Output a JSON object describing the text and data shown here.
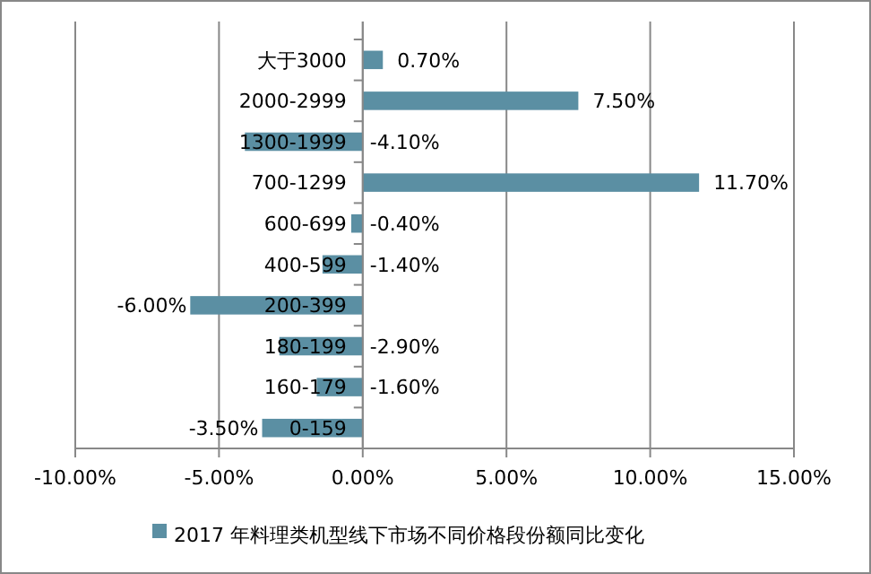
{
  "chart_data": {
    "type": "bar",
    "orientation": "horizontal",
    "categories": [
      "大于3000",
      "2000-2999",
      "1300-1999",
      "700-1299",
      "600-699",
      "400-599",
      "200-399",
      "180-199",
      "160-179",
      "0-159"
    ],
    "series": [
      {
        "name": "2017 年料理类机型线下市场不同价格段份额同比变化",
        "color": "#5b8fa3",
        "values": [
          0.7,
          7.5,
          -4.1,
          11.7,
          -0.4,
          -1.4,
          -6.0,
          -2.9,
          -1.6,
          -3.5
        ],
        "value_labels": [
          "0.70%",
          "7.50%",
          "-4.10%",
          "11.70%",
          "-0.40%",
          "-1.40%",
          "-6.00%",
          "-2.90%",
          "-1.60%",
          "-3.50%"
        ]
      }
    ],
    "xlim": [
      -10,
      15
    ],
    "xticks": [
      {
        "value": -10,
        "label": "-10.00%"
      },
      {
        "value": -5,
        "label": "-5.00%"
      },
      {
        "value": 0,
        "label": "0.00%"
      },
      {
        "value": 5,
        "label": "5.00%"
      },
      {
        "value": 10,
        "label": "10.00%"
      },
      {
        "value": 15,
        "label": "15.00%"
      }
    ],
    "grid": "x",
    "legend": "bottom"
  }
}
